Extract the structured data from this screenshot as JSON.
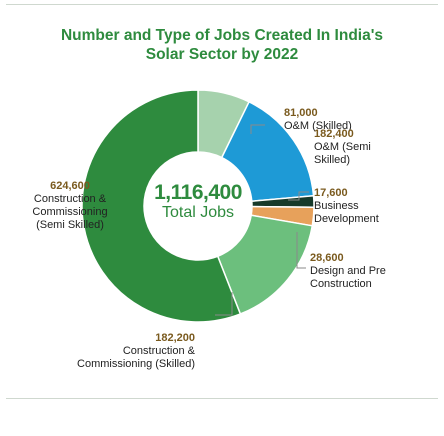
{
  "title_line1": "Number and Type of Jobs Created In India's",
  "title_line2": "Solar Sector by 2022",
  "center": {
    "value": "1,116,400",
    "label": "Total Jobs"
  },
  "chart_data": {
    "type": "pie",
    "variant": "donut",
    "title": "Number and Type of Jobs Created In India's Solar Sector by 2022",
    "total": 1116400,
    "slices": [
      {
        "value": 81000,
        "value_label": "81,000",
        "label_lines": [
          "O&M (Skilled)"
        ],
        "color": "#a6d2ad"
      },
      {
        "value": 182400,
        "value_label": "182,400",
        "label_lines": [
          "O&M (Semi",
          "Skilled)"
        ],
        "color": "#1e9ad6"
      },
      {
        "value": 17600,
        "value_label": "17,600",
        "label_lines": [
          "Business",
          "Development"
        ],
        "color": "#173a2a"
      },
      {
        "value": 28600,
        "value_label": "28,600",
        "label_lines": [
          "Design and Pre",
          "Construction"
        ],
        "color": "#e7a15b"
      },
      {
        "value": 182200,
        "value_label": "182,200",
        "label_lines": [
          "Construction &",
          "Commissioning (Skilled)"
        ],
        "color": "#6cbf7d"
      },
      {
        "value": 624600,
        "value_label": "624,600",
        "label_lines": [
          "Construction &",
          "Commissioning",
          "(Semi Skilled)"
        ],
        "color": "#2e8b3e"
      }
    ]
  }
}
